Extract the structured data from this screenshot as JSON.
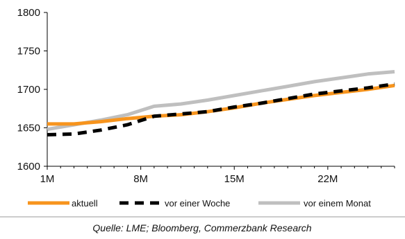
{
  "chart_data": {
    "type": "line",
    "title": "",
    "xlabel": "",
    "ylabel": "",
    "x_ticks": [
      "1M",
      "8M",
      "15M",
      "22M"
    ],
    "x_tick_values": [
      1,
      8,
      15,
      22
    ],
    "xlim": [
      1,
      27
    ],
    "ylim": [
      1600,
      1800
    ],
    "y_ticks": [
      1600,
      1650,
      1700,
      1750,
      1800
    ],
    "y_tick_labels": [
      "1600",
      "1650",
      "1700",
      "1750",
      "1800"
    ],
    "grid": false,
    "legend_position": "bottom",
    "x": [
      1,
      3,
      5,
      7,
      9,
      11,
      13,
      15,
      17,
      19,
      21,
      23,
      25,
      27
    ],
    "series": [
      {
        "name": "aktuell",
        "color": "#F7941D",
        "style": "solid",
        "values": [
          1655,
          1655,
          1658,
          1662,
          1665,
          1667,
          1671,
          1676,
          1682,
          1687,
          1692,
          1696,
          1700,
          1705
        ]
      },
      {
        "name": "vor einer Woche",
        "color": "#000000",
        "style": "dashed",
        "values": [
          1641,
          1642,
          1647,
          1654,
          1665,
          1668,
          1671,
          1677,
          1682,
          1688,
          1694,
          1698,
          1702,
          1707
        ]
      },
      {
        "name": "vor einem Monat",
        "color": "#BFBFBF",
        "style": "solid",
        "values": [
          1648,
          1654,
          1660,
          1667,
          1678,
          1681,
          1686,
          1692,
          1698,
          1704,
          1710,
          1715,
          1720,
          1723
        ]
      }
    ]
  },
  "source": "Quelle: LME; Bloomberg, Commerzbank Research"
}
